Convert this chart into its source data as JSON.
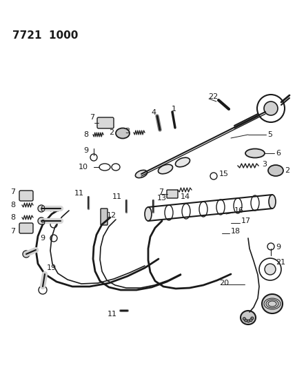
{
  "title": "7721 1000",
  "bg_color": "#ffffff",
  "lc": "#1a1a1a",
  "tc": "#1a1a1a",
  "title_fontsize": 11,
  "label_fontsize": 8,
  "fig_width": 4.28,
  "fig_height": 5.33,
  "dpi": 100
}
